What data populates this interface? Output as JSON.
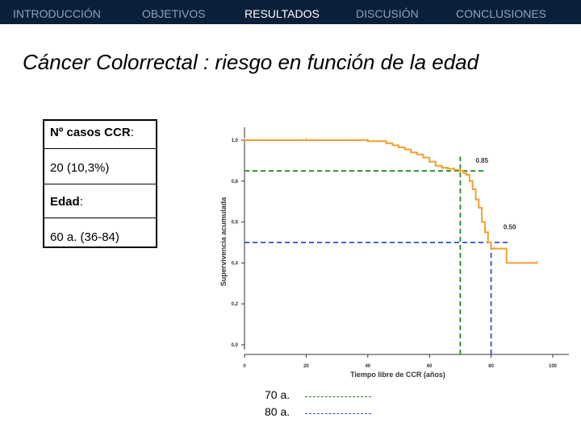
{
  "nav": {
    "items": [
      {
        "label": "INTRODUCCIÓN",
        "active": false
      },
      {
        "label": "OBJETIVOS",
        "active": false
      },
      {
        "label": "RESULTADOS",
        "active": true
      },
      {
        "label": "DISCUSIÓN",
        "active": false
      },
      {
        "label": "CONCLUSIONES",
        "active": false
      }
    ]
  },
  "slide": {
    "title": "Cáncer Colorrectal :  riesgo en función de la edad"
  },
  "info": {
    "cases_label": "Nº casos CCR",
    "cases_colon": ":",
    "cases_value": "20 (10,3%)",
    "age_label": "Edad",
    "age_colon": ":",
    "age_value": "60 a. (36-84)"
  },
  "legend": {
    "green_label": "70 a.",
    "blue_label": "80 a.",
    "green_color": "#1e8a1e",
    "blue_color": "#2a4fd6"
  },
  "chart_data": {
    "type": "line",
    "xlabel": "Tiempo libre de CCR (años)",
    "ylabel": "Supervivencia acumulada",
    "xlim": [
      0,
      100
    ],
    "ylim": [
      0,
      1.0
    ],
    "x_ticks": [
      "0",
      "20",
      "40",
      "60",
      "80",
      "100"
    ],
    "y_ticks": [
      "0,0",
      "0,2",
      "0,4",
      "0,6",
      "0,8",
      "1,0"
    ],
    "series": [
      {
        "color": "#f0a030",
        "step": true,
        "x": [
          0,
          20,
          40,
          46,
          48,
          50,
          52,
          54,
          56,
          58,
          60,
          62,
          64,
          66,
          68,
          70,
          71,
          72,
          73,
          74,
          75,
          76,
          77,
          78,
          79,
          80,
          81,
          85,
          95
        ],
        "y": [
          1.0,
          1.0,
          0.995,
          0.985,
          0.975,
          0.965,
          0.955,
          0.94,
          0.93,
          0.915,
          0.895,
          0.875,
          0.865,
          0.86,
          0.855,
          0.85,
          0.84,
          0.83,
          0.8,
          0.76,
          0.71,
          0.67,
          0.6,
          0.55,
          0.5,
          0.47,
          0.47,
          0.4,
          0.4
        ]
      }
    ],
    "annotations": [
      {
        "text": "0.85",
        "x": 75,
        "y": 0.89
      },
      {
        "text": "0.50",
        "x": 84,
        "y": 0.565
      }
    ],
    "reference_lines": [
      {
        "orientation": "horizontal",
        "y": 0.85,
        "color": "#1e8a1e",
        "from": 0,
        "to": 78
      },
      {
        "orientation": "vertical",
        "x": 70,
        "color": "#1e8a1e",
        "from": 0,
        "to": 0.92
      },
      {
        "orientation": "horizontal",
        "y": 0.5,
        "color": "#2a4fd6",
        "from": 0,
        "to": 86
      },
      {
        "orientation": "vertical",
        "x": 80,
        "color": "#2a4fd6",
        "from": 0,
        "to": 0.5
      }
    ],
    "grid": false
  }
}
